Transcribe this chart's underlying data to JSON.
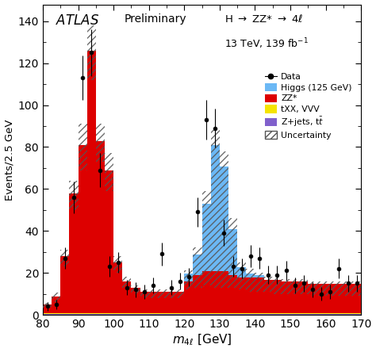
{
  "ylabel": "Events/2.5 GeV",
  "xlim": [
    80,
    170
  ],
  "ylim": [
    0,
    148
  ],
  "bin_edges": [
    80,
    82.5,
    85,
    87.5,
    90,
    92.5,
    95,
    97.5,
    100,
    102.5,
    105,
    107.5,
    110,
    112.5,
    115,
    117.5,
    120,
    122.5,
    125,
    127.5,
    130,
    132.5,
    135,
    137.5,
    140,
    142.5,
    145,
    147.5,
    150,
    152.5,
    155,
    157.5,
    160,
    162.5,
    165,
    167.5,
    170
  ],
  "zz_values": [
    4,
    8,
    27,
    57,
    80,
    125,
    82,
    68,
    24,
    15,
    12,
    10,
    10,
    10,
    10,
    10,
    15,
    18,
    20,
    20,
    20,
    18,
    17,
    17,
    17,
    16,
    16,
    15,
    15,
    15,
    14,
    14,
    14,
    14,
    14,
    14
  ],
  "higgs_values": [
    0,
    0,
    0,
    0,
    0,
    0,
    0,
    0,
    0,
    0,
    0,
    0,
    0,
    0,
    0,
    0,
    4,
    10,
    32,
    60,
    50,
    22,
    5,
    2,
    1,
    0,
    0,
    0,
    0,
    0,
    0,
    0,
    0,
    0,
    0,
    0
  ],
  "txx_values": [
    0.5,
    0.5,
    0.5,
    0.5,
    0.5,
    0.5,
    0.5,
    0.5,
    0.5,
    0.5,
    0.5,
    0.5,
    0.5,
    0.5,
    0.5,
    0.5,
    0.5,
    0.5,
    0.5,
    0.5,
    0.5,
    0.5,
    0.5,
    0.5,
    0.5,
    0.5,
    0.5,
    0.5,
    0.5,
    0.5,
    0.5,
    0.5,
    0.5,
    0.5,
    0.5,
    0.5
  ],
  "zjets_values": [
    0.3,
    0.3,
    0.3,
    0.3,
    0.3,
    0.3,
    0.3,
    0.3,
    0.3,
    0.3,
    0.3,
    0.3,
    0.3,
    0.3,
    0.3,
    0.3,
    0.3,
    0.3,
    0.3,
    0.3,
    0.3,
    0.3,
    0.3,
    0.3,
    0.3,
    0.3,
    0.3,
    0.3,
    0.3,
    0.3,
    0.3,
    0.3,
    0.3,
    0.3,
    0.3,
    0.3
  ],
  "unc_hi": [
    5.5,
    10.5,
    31,
    64,
    91,
    138,
    91,
    77,
    28,
    18,
    14,
    12,
    12,
    12,
    12,
    12,
    21,
    32,
    59,
    88,
    78,
    46,
    25,
    22,
    20,
    18,
    18,
    17,
    17,
    17,
    16,
    16,
    16,
    16,
    16,
    16
  ],
  "unc_lo": [
    3,
    6,
    23,
    50,
    69,
    112,
    73,
    59,
    20,
    12,
    10,
    8,
    8,
    8,
    8,
    8,
    12,
    13,
    14,
    13,
    13,
    13,
    12,
    11,
    11,
    11,
    10,
    10,
    10,
    10,
    9,
    9,
    9,
    9,
    9,
    9
  ],
  "data_x": [
    81.25,
    83.75,
    86.25,
    88.75,
    91.25,
    93.75,
    96.25,
    98.75,
    101.25,
    103.75,
    106.25,
    108.75,
    111.25,
    113.75,
    116.25,
    118.75,
    121.25,
    123.75,
    126.25,
    128.75,
    131.25,
    133.75,
    136.25,
    138.75,
    141.25,
    143.75,
    146.25,
    148.75,
    151.25,
    153.75,
    156.25,
    158.75,
    161.25,
    163.75,
    166.25,
    168.75
  ],
  "data_y": [
    4,
    5,
    27,
    56,
    113,
    125,
    69,
    23,
    25,
    13,
    12,
    11,
    14,
    29,
    13,
    16,
    18,
    49,
    93,
    89,
    39,
    23,
    22,
    28,
    27,
    19,
    19,
    21,
    14,
    15,
    12,
    10,
    11,
    22,
    15,
    15
  ],
  "data_yerr_lo": [
    2,
    2.2,
    5.2,
    7.5,
    10.6,
    11.2,
    8.3,
    4.8,
    5.0,
    3.6,
    3.5,
    3.3,
    3.7,
    5.4,
    3.6,
    4.0,
    4.2,
    7.0,
    9.6,
    9.4,
    6.2,
    4.8,
    4.7,
    5.3,
    5.2,
    4.4,
    4.4,
    4.6,
    3.7,
    3.9,
    3.5,
    3.2,
    3.3,
    4.7,
    3.9,
    3.9
  ],
  "data_yerr_hi": [
    2,
    2.2,
    5.2,
    7.5,
    10.6,
    11.2,
    8.3,
    4.8,
    5.0,
    3.6,
    3.5,
    3.3,
    3.7,
    5.4,
    3.6,
    4.0,
    4.2,
    7.0,
    9.6,
    9.4,
    6.2,
    4.8,
    4.7,
    5.3,
    5.2,
    4.4,
    4.4,
    4.6,
    3.7,
    3.9,
    3.5,
    3.2,
    3.3,
    4.7,
    3.9,
    3.9
  ],
  "color_zz": "#dd0000",
  "color_higgs": "#6bb8f5",
  "color_txx": "#f5e400",
  "color_zjets": "#8060cc",
  "color_data": "#000000",
  "background_color": "#ffffff"
}
